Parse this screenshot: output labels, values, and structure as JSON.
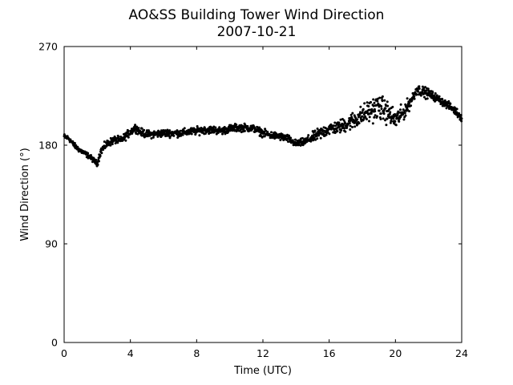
{
  "chart_data": {
    "type": "scatter",
    "title": "AO&SS Building Tower Wind Direction",
    "subtitle": "2007-10-21",
    "xlabel": "Time (UTC)",
    "ylabel": "Wind Direction (°)",
    "xlim": [
      0,
      24
    ],
    "ylim": [
      0,
      270
    ],
    "xticks": [
      0,
      4,
      8,
      12,
      16,
      20,
      24
    ],
    "yticks": [
      0,
      90,
      180,
      270
    ],
    "grid": false,
    "marker_color": "#000000",
    "series": [
      {
        "x": [
          0.0,
          0.3,
          0.6,
          0.9,
          1.2,
          1.5,
          1.8,
          2.0,
          2.2,
          2.5,
          2.8,
          3.1,
          3.4,
          3.7,
          4.0,
          4.3,
          4.6,
          5.0,
          5.5,
          6.0,
          6.5,
          7.0,
          7.5,
          8.0,
          8.5,
          9.0,
          9.5,
          10.0,
          10.5,
          11.0,
          11.5,
          12.0,
          12.5,
          13.0,
          13.5,
          14.0,
          14.5,
          15.0,
          15.5,
          16.0,
          16.5,
          17.0,
          17.5,
          18.0,
          18.5,
          19.0,
          19.5,
          20.0,
          20.5,
          21.0,
          21.3,
          21.6,
          22.0,
          22.5,
          23.0,
          23.5,
          24.0
        ],
        "y": [
          188,
          186,
          180,
          176,
          173,
          170,
          166,
          163,
          174,
          180,
          183,
          185,
          184,
          188,
          192,
          196,
          192,
          190,
          190,
          191,
          191,
          191,
          192,
          193,
          194,
          194,
          193,
          195,
          196,
          196,
          195,
          191,
          189,
          188,
          186,
          181,
          183,
          187,
          191,
          195,
          196,
          199,
          203,
          207,
          212,
          215,
          210,
          203,
          210,
          222,
          231,
          229,
          227,
          223,
          218,
          213,
          205
        ],
        "spread": [
          2,
          2,
          2,
          2,
          2,
          2,
          2,
          2,
          3,
          3,
          3,
          3,
          3,
          3,
          3,
          3,
          3,
          3,
          3,
          3,
          3,
          3,
          3,
          3,
          3,
          3,
          3,
          3,
          3,
          3,
          3,
          3,
          3,
          3,
          3,
          3,
          3,
          4,
          5,
          5,
          5,
          6,
          7,
          8,
          9,
          10,
          9,
          8,
          6,
          5,
          4,
          4,
          4,
          3,
          3,
          3,
          3
        ]
      }
    ]
  }
}
